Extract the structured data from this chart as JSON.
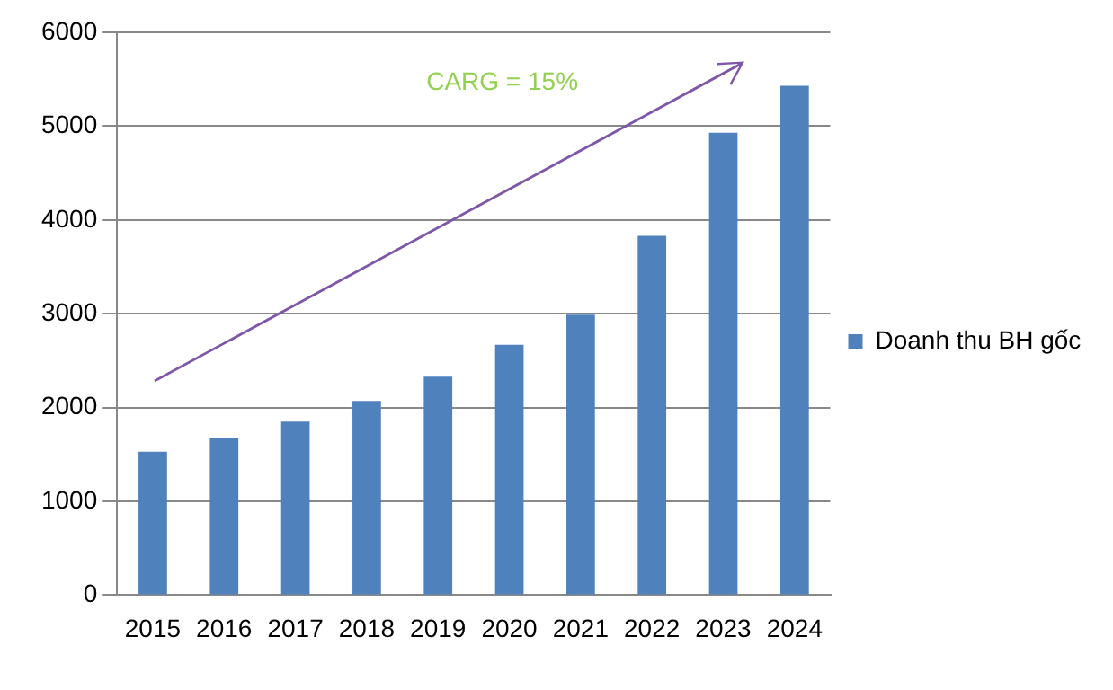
{
  "chart_data": {
    "type": "bar",
    "categories": [
      "2015",
      "2016",
      "2017",
      "2018",
      "2019",
      "2020",
      "2021",
      "2022",
      "2023",
      "2024"
    ],
    "series": [
      {
        "name": "Doanh thu BH gốc",
        "color": "#4f81bd",
        "values": [
          1530,
          1680,
          1850,
          2070,
          2330,
          2670,
          2990,
          3830,
          4930,
          5430
        ]
      }
    ],
    "ylim": [
      0,
      6000
    ],
    "yticks": [
      0,
      1000,
      2000,
      3000,
      4000,
      5000,
      6000
    ],
    "grid": "y",
    "legend": "right",
    "annotations": [
      "CARG = 15%"
    ]
  }
}
